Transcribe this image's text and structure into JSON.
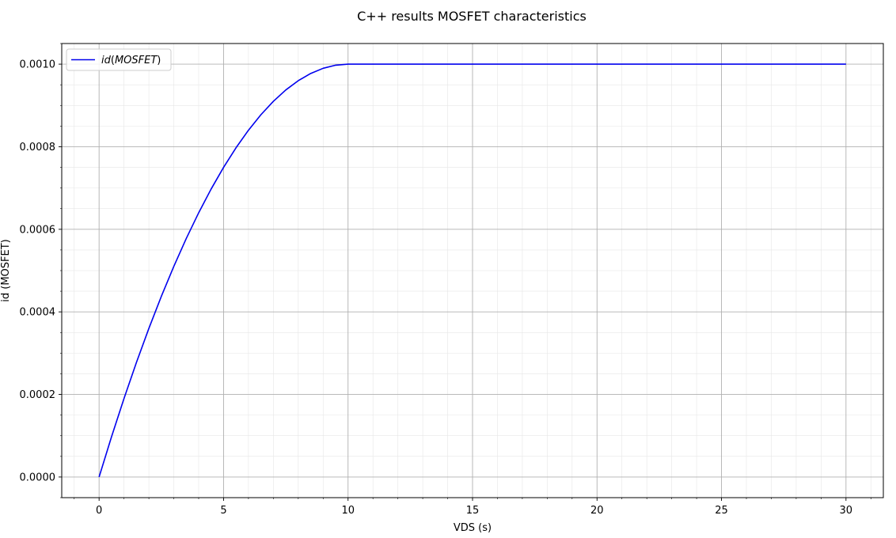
{
  "chart_data": {
    "type": "line",
    "title": "C++ results MOSFET characteristics",
    "xlabel": "VDS (s)",
    "ylabel": "id (MOSFET)",
    "xlim": [
      -1.5,
      31.5
    ],
    "ylim": [
      -5e-05,
      0.00105
    ],
    "x_ticks": [
      0,
      5,
      10,
      15,
      20,
      25,
      30
    ],
    "x_tick_labels": [
      "0",
      "5",
      "10",
      "15",
      "20",
      "25",
      "30"
    ],
    "y_ticks": [
      0,
      0.0002,
      0.0004,
      0.0006,
      0.0008,
      0.001
    ],
    "y_tick_labels": [
      "0.0000",
      "0.0002",
      "0.0004",
      "0.0006",
      "0.0008",
      "0.0010"
    ],
    "grid": {
      "major": true,
      "minor": true
    },
    "legend": {
      "location": "upper left",
      "entries": [
        {
          "label_plain": "id(MOSFET)",
          "label_italic_prefix": "id",
          "label_italic_inner": "MOSFET"
        }
      ]
    },
    "series": [
      {
        "name": "id(MOSFET)",
        "color": "#0000ee",
        "x": [
          0,
          0.5,
          1,
          1.5,
          2,
          2.5,
          3,
          3.5,
          4,
          4.5,
          5,
          5.5,
          6,
          6.5,
          7,
          7.5,
          8,
          8.5,
          9,
          9.5,
          10,
          12,
          14,
          16,
          18,
          20,
          22,
          24,
          26,
          28,
          30
        ],
        "y": [
          0,
          9.75e-05,
          0.00019,
          0.0002775,
          0.00036,
          0.0004375,
          0.00051,
          0.0005775,
          0.00064,
          0.0006975,
          0.00075,
          0.0007975,
          0.00084,
          0.0008775,
          0.00091,
          0.0009375,
          0.00096,
          0.0009775,
          0.00099,
          0.0009975,
          0.001,
          0.001,
          0.001,
          0.001,
          0.001,
          0.001,
          0.001,
          0.001,
          0.001,
          0.001,
          0.001
        ]
      }
    ]
  }
}
